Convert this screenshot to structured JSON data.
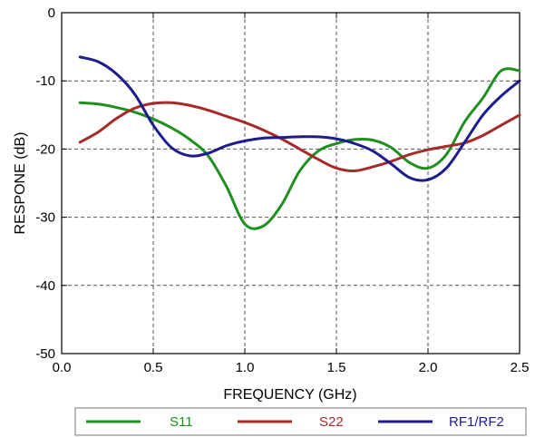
{
  "chart_data": {
    "type": "line",
    "title": "",
    "xlabel": "FREQUENCY (GHz)",
    "ylabel": "RESPONE (dB)",
    "xlim": [
      0.0,
      2.5
    ],
    "ylim": [
      -50,
      0
    ],
    "xticks": [
      0.0,
      0.5,
      1.0,
      1.5,
      2.0,
      2.5
    ],
    "xtick_labels": [
      "0.0",
      "0.5",
      "1.0",
      "1.5",
      "2.0",
      "2.5"
    ],
    "yticks": [
      0,
      -10,
      -20,
      -30,
      -40,
      -50
    ],
    "ytick_labels": [
      "0",
      "-10",
      "-20",
      "-30",
      "-40",
      "-50"
    ],
    "grid": true,
    "legend_position": "bottom",
    "series": [
      {
        "name": "S11",
        "color": "#1f8f1f",
        "x": [
          0.1,
          0.2,
          0.3,
          0.4,
          0.5,
          0.6,
          0.7,
          0.8,
          0.9,
          1.0,
          1.1,
          1.2,
          1.3,
          1.4,
          1.5,
          1.6,
          1.7,
          1.8,
          1.9,
          2.0,
          2.1,
          2.2,
          2.3,
          2.4,
          2.5
        ],
        "y": [
          -13.2,
          -13.4,
          -13.9,
          -14.6,
          -15.6,
          -16.9,
          -18.6,
          -21.0,
          -25.5,
          -31.0,
          -31.3,
          -28.2,
          -23.2,
          -20.3,
          -19.2,
          -18.6,
          -18.7,
          -19.8,
          -22.0,
          -22.8,
          -20.8,
          -16.0,
          -12.5,
          -8.5,
          -8.5
        ]
      },
      {
        "name": "S22",
        "color": "#a52a2a",
        "x": [
          0.1,
          0.2,
          0.3,
          0.4,
          0.5,
          0.6,
          0.7,
          0.8,
          0.9,
          1.0,
          1.1,
          1.2,
          1.3,
          1.4,
          1.5,
          1.6,
          1.7,
          1.8,
          1.9,
          2.0,
          2.1,
          2.2,
          2.3,
          2.4,
          2.5
        ],
        "y": [
          -19.0,
          -17.5,
          -15.5,
          -14.0,
          -13.3,
          -13.2,
          -13.6,
          -14.3,
          -15.2,
          -16.1,
          -17.2,
          -18.5,
          -20.0,
          -21.5,
          -22.8,
          -23.2,
          -22.6,
          -21.8,
          -20.8,
          -20.1,
          -19.6,
          -19.1,
          -18.0,
          -16.5,
          -15.0
        ]
      },
      {
        "name": "RF1/RF2",
        "color": "#1c1c8c",
        "x": [
          0.1,
          0.2,
          0.3,
          0.4,
          0.5,
          0.6,
          0.7,
          0.8,
          0.9,
          1.0,
          1.1,
          1.2,
          1.3,
          1.4,
          1.5,
          1.6,
          1.7,
          1.8,
          1.9,
          2.0,
          2.1,
          2.2,
          2.3,
          2.4,
          2.5
        ],
        "y": [
          -6.5,
          -7.2,
          -9.0,
          -12.0,
          -16.5,
          -19.8,
          -21.0,
          -20.6,
          -19.5,
          -18.8,
          -18.4,
          -18.3,
          -18.2,
          -18.2,
          -18.5,
          -19.2,
          -20.3,
          -22.2,
          -24.2,
          -24.5,
          -22.8,
          -19.0,
          -15.0,
          -12.2,
          -10.0
        ]
      }
    ]
  }
}
